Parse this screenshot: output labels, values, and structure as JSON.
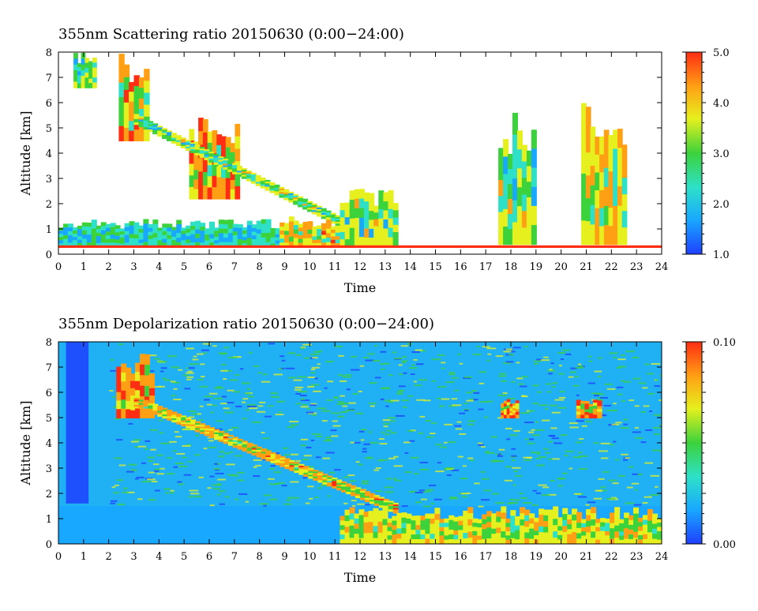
{
  "charts": [
    {
      "id": "scattering",
      "title": "355nm Scattering ratio  20150630 (0:00−24:00)",
      "xlabel": "Time",
      "ylabel": "Altitude [km]",
      "colorbar_labels": [
        "5.0",
        "4.0",
        "3.0",
        "2.0",
        "1.0"
      ]
    },
    {
      "id": "depolarization",
      "title": "355nm Depolarization ratio  20150630 (0:00−24:00)",
      "xlabel": "Time",
      "ylabel": "Altitude [km]",
      "colorbar_labels": [
        "0.10",
        "0.00"
      ]
    }
  ],
  "chart_data": [
    {
      "type": "heatmap",
      "title": "355nm Scattering ratio  20150630 (0:00−24:00)",
      "xlabel": "Time",
      "ylabel": "Altitude [km]",
      "xlim": [
        0,
        24
      ],
      "ylim": [
        0,
        8
      ],
      "x_ticks": [
        "0",
        "1",
        "2",
        "3",
        "4",
        "5",
        "6",
        "7",
        "8",
        "9",
        "10",
        "11",
        "12",
        "13",
        "14",
        "15",
        "16",
        "17",
        "18",
        "19",
        "20",
        "21",
        "22",
        "23",
        "24"
      ],
      "y_ticks": [
        "0",
        "1",
        "2",
        "3",
        "4",
        "5",
        "6",
        "7",
        "8"
      ],
      "color_scale": {
        "min": 1.0,
        "max": 5.0,
        "labels": [
          "1.0",
          "2.0",
          "3.0",
          "4.0",
          "5.0"
        ]
      },
      "colormap": [
        "#1f3fff",
        "#19a8ff",
        "#2ee0c8",
        "#3cd23c",
        "#e6f01e",
        "#ffa014",
        "#ff2d14"
      ],
      "features": [
        {
          "label": "boundary layer",
          "t_start": 0,
          "t_end": 9,
          "z_bottom": 0.3,
          "z_top": 1.4,
          "value": 3.0
        },
        {
          "label": "cloud",
          "t_start": 0.6,
          "t_end": 1.5,
          "z_bottom": 6.6,
          "z_top": 8.0,
          "value": 4.0
        },
        {
          "label": "cloud",
          "t_start": 2.4,
          "t_end": 3.6,
          "z_bottom": 4.5,
          "z_top": 8.0,
          "value": 5.0
        },
        {
          "label": "cloud",
          "t_start": 5.2,
          "t_end": 7.2,
          "z_bottom": 2.2,
          "z_top": 5.5,
          "value": 5.0
        },
        {
          "label": "descending layer",
          "t_start": 3.0,
          "t_end": 11.2,
          "z_bottom": 1.2,
          "z_top": 5.3,
          "value": 4.0
        },
        {
          "label": "cloud",
          "t_start": 8.8,
          "t_end": 11.2,
          "z_bottom": 0.3,
          "z_top": 1.5,
          "value": 4.5
        },
        {
          "label": "cloud",
          "t_start": 11.2,
          "t_end": 13.5,
          "z_bottom": 0.3,
          "z_top": 2.6,
          "value": 4.0
        },
        {
          "label": "cloud",
          "t_start": 17.5,
          "t_end": 19.0,
          "z_bottom": 0.4,
          "z_top": 5.8,
          "value": 4.0
        },
        {
          "label": "cloud",
          "t_start": 20.8,
          "t_end": 22.6,
          "z_bottom": 0.4,
          "z_top": 6.1,
          "value": 4.5
        }
      ]
    },
    {
      "type": "heatmap",
      "title": "355nm Depolarization ratio  20150630 (0:00−24:00)",
      "xlabel": "Time",
      "ylabel": "Altitude [km]",
      "xlim": [
        0,
        24
      ],
      "ylim": [
        0,
        8
      ],
      "x_ticks": [
        "0",
        "1",
        "2",
        "3",
        "4",
        "5",
        "6",
        "7",
        "8",
        "9",
        "10",
        "11",
        "12",
        "13",
        "14",
        "15",
        "16",
        "17",
        "18",
        "19",
        "20",
        "21",
        "22",
        "23",
        "24"
      ],
      "y_ticks": [
        "0",
        "1",
        "2",
        "3",
        "4",
        "5",
        "6",
        "7",
        "8"
      ],
      "color_scale": {
        "min": 0.0,
        "max": 0.1,
        "labels": [
          "0.00",
          "0.10"
        ]
      },
      "colormap": [
        "#1f3fff",
        "#19a8ff",
        "#2ee0c8",
        "#3cd23c",
        "#e6f01e",
        "#ffa014",
        "#ff2d14"
      ],
      "features": [
        {
          "label": "cloud",
          "t_start": 2.3,
          "t_end": 3.8,
          "z_bottom": 5.0,
          "z_top": 7.6,
          "value": 0.1
        },
        {
          "label": "descending layer",
          "t_start": 3.0,
          "t_end": 13.5,
          "z_bottom": 1.3,
          "z_top": 5.6,
          "value": 0.09
        },
        {
          "label": "cloud",
          "t_start": 17.6,
          "t_end": 18.3,
          "z_bottom": 5.0,
          "z_top": 5.8,
          "value": 0.1
        },
        {
          "label": "cloud",
          "t_start": 20.6,
          "t_end": 21.6,
          "z_bottom": 5.0,
          "z_top": 5.8,
          "value": 0.1
        },
        {
          "label": "low aerosol",
          "t_start": 11.2,
          "t_end": 24,
          "z_bottom": 0.0,
          "z_top": 1.5,
          "value": 0.08
        }
      ]
    }
  ]
}
